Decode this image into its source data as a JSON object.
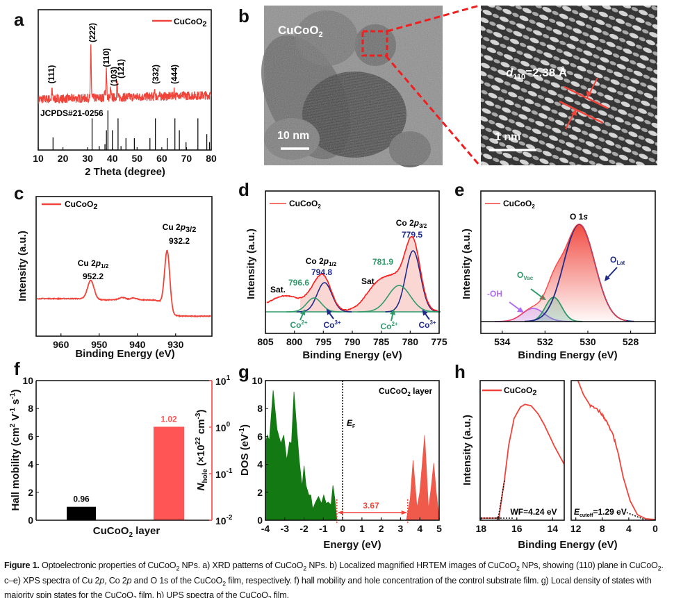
{
  "panels": {
    "a": {
      "label": "a",
      "legend": "CuCoO",
      "legend_sub": "2",
      "ref_label": "JCPDS#21-0256",
      "xlabel": "2 Theta (degree)"
    },
    "b": {
      "label": "b",
      "sample": "CuCoO",
      "sample_sub": "2",
      "scale_left": "10 nm",
      "scale_right": "1 nm",
      "d_label": "d",
      "d_sub": "110",
      "d_value": "=2.38 Å"
    },
    "c": {
      "label": "c",
      "legend": "CuCoO",
      "legend_sub": "2",
      "ylabel": "Intensity (a.u.)",
      "xlabel": "Binding Energy (eV)",
      "peak1_name": "Cu 2",
      "peak1_p": "p",
      "peak1_sub": "1/2",
      "peak1_value": "952.2",
      "peak2_name": "Cu 2",
      "peak2_p": "p",
      "peak2_sub": "3/2",
      "peak2_value": "932.2"
    },
    "d": {
      "label": "d",
      "legend": "CuCoO",
      "legend_sub": "2",
      "ylabel": "Intensity (a.u.)",
      "xlabel": "Binding Energy (eV)",
      "p12_name": "Co 2",
      "p12_p": "p",
      "p12_sub": "1/2",
      "p32_name": "Co 2",
      "p32_p": "p",
      "p32_sub": "3/2",
      "v7948": "794.8",
      "v7966": "796.6",
      "v7795": "779.5",
      "v7819": "781.9",
      "sat": "Sat.",
      "co2": "Co",
      "co2_sup": "2+",
      "co3": "Co",
      "co3_sup": "3+"
    },
    "e": {
      "label": "e",
      "legend": "CuCoO",
      "legend_sub": "2",
      "ylabel": "Intensity (a.u.)",
      "xlabel": "Binding Energy (eV)",
      "title": "O 1",
      "title_s": "s",
      "olat": "O",
      "olat_sub": "Lat",
      "ovac": "O",
      "ovac_sub": "Vac",
      "oh": "-OH"
    },
    "f": {
      "label": "f",
      "ylabel_left": "Hall mobility (cm",
      "ylabel_left_sup1": "2",
      "ylabel_left_mid": " V",
      "ylabel_left_sup2": "-1",
      "ylabel_left_end": " s",
      "ylabel_left_sup3": "-1",
      "ylabel_left_close": ")",
      "ylabel_right_n": "N",
      "ylabel_right_sub": "hole",
      "ylabel_right_mid": " (×10",
      "ylabel_right_sup": "22",
      "ylabel_right_end": " cm",
      "ylabel_right_sup2": "-3",
      "ylabel_right_close": ")",
      "xlabel": "CuCoO",
      "xlabel_sub": "2",
      "xlabel_end": " layer"
    },
    "g": {
      "label": "g",
      "legend": "CuCoO",
      "legend_sub": "2",
      "legend_end": " layer",
      "ylabel": "DOS (eV",
      "ylabel_sup": "-1",
      "ylabel_end": ")",
      "xlabel": "Energy (eV)",
      "ef": "E",
      "ef_sub": "F",
      "gap_label": "3.67"
    },
    "h": {
      "label": "h",
      "legend": "CuCoO",
      "legend_sub": "2",
      "ylabel": "Intensity (a.u.)",
      "xlabel": "Binding Energy (eV)",
      "wf": "WF=4.24 eV",
      "ecut": "E",
      "ecut_sub": "cutoff",
      "ecut_val": "=1.29 eV"
    }
  },
  "caption": {
    "figure_label": "Figure 1.",
    "t1": " Optoelectronic properties of CuCoO",
    "s1": "2",
    "t2": " NPs. a) XRD patterns of CuCoO",
    "s2": "2",
    "t3": " NPs. b) Localized magnified HRTEM images of CuCoO",
    "s3": "2",
    "t4": " NPs, showing (110) plane in CuCoO",
    "s4": "2",
    "t5": ". c–e) XPS spectra of Cu 2",
    "i1": "p",
    "t6": ", Co 2",
    "i2": "p",
    "t7": " and O 1s of the CuCoO",
    "s5": "2",
    "t8": " film, respectively. f) hall mobility and hole concentration of the control substrate film. g) Local density of states with majority spin states for the CuCoO",
    "s6": "2",
    "t9": " film. h) UPS spectra of the CuCoO",
    "s7": "2",
    "t10": " film."
  },
  "colors": {
    "red": "#f0443a",
    "bar_red": "#ff5555",
    "navy": "#1f2a8a",
    "green": "#2e9a6a",
    "purple": "#b06cf0",
    "dos_green": "#137a13",
    "dos_red": "#f05a4a",
    "pink_fill": "#f9c9c6"
  },
  "chart_data": [
    {
      "panel": "a",
      "type": "line",
      "xlabel": "2 Theta (degree)",
      "xlim": [
        10,
        80
      ],
      "xticks": [
        10,
        20,
        30,
        40,
        50,
        60,
        70,
        80
      ],
      "series": [
        {
          "name": "CuCoO2",
          "peaks": [
            {
              "x": 15.6,
              "rel": 0.18
            },
            {
              "x": 31.3,
              "rel": 1.0
            },
            {
              "x": 36.9,
              "rel": 0.12
            },
            {
              "x": 37.6,
              "rel": 0.55
            },
            {
              "x": 39.3,
              "rel": 0.15
            },
            {
              "x": 41.9,
              "rel": 0.27
            },
            {
              "x": 57.2,
              "rel": 0.12
            },
            {
              "x": 65.0,
              "rel": 0.1
            },
            {
              "x": 66.5,
              "rel": 0.08
            }
          ]
        }
      ],
      "reference": {
        "name": "JCPDS#21-0256",
        "sticks": [
          [
            16.0,
            0.32
          ],
          [
            31.8,
            0.8
          ],
          [
            34.7,
            0.1
          ],
          [
            37.0,
            0.15
          ],
          [
            37.6,
            0.5
          ],
          [
            38.2,
            1.0
          ],
          [
            40.0,
            0.5
          ],
          [
            42.3,
            0.8
          ],
          [
            43.5,
            0.1
          ],
          [
            45.5,
            0.3
          ],
          [
            48.9,
            0.3
          ],
          [
            55.2,
            0.3
          ],
          [
            57.4,
            0.8
          ],
          [
            62.2,
            0.3
          ],
          [
            65.3,
            0.8
          ],
          [
            67.1,
            0.5
          ],
          [
            69.8,
            0.2
          ],
          [
            74.6,
            0.8
          ],
          [
            78.2,
            0.4
          ],
          [
            79.3,
            0.2
          ]
        ]
      },
      "peak_labels": [
        "(111)",
        "(222)",
        "(110)",
        "(103)",
        "(121)",
        "(332)",
        "(444)"
      ]
    },
    {
      "panel": "c",
      "type": "line",
      "xlabel": "Binding Energy (eV)",
      "ylabel": "Intensity (a.u.)",
      "xlim": [
        966.5,
        920.5
      ],
      "xticks": [
        960,
        950,
        940,
        930
      ],
      "series": [
        {
          "name": "CuCoO2",
          "peaks": [
            {
              "center": 952.2,
              "height": 0.15,
              "fwhm": 2.0
            },
            {
              "center": 932.2,
              "height": 0.47,
              "fwhm": 1.6
            },
            {
              "center": 944.0,
              "height": 0.02,
              "fwhm": 2.0
            },
            {
              "center": 941.0,
              "height": 0.015,
              "fwhm": 2.0
            }
          ]
        }
      ]
    },
    {
      "panel": "d",
      "type": "line",
      "xlabel": "Binding Energy (eV)",
      "ylabel": "Intensity (a.u.)",
      "xlim": [
        805,
        775
      ],
      "xticks": [
        805,
        800,
        795,
        790,
        785,
        780,
        775
      ],
      "components": [
        {
          "name": "Co3+",
          "center": 779.5,
          "height": 0.88,
          "fwhm": 3.0,
          "color": "navy"
        },
        {
          "name": "Co2+",
          "center": 781.9,
          "height": 0.38,
          "fwhm": 4.5,
          "color": "green"
        },
        {
          "name": "Co3+",
          "center": 794.8,
          "height": 0.42,
          "fwhm": 3.0,
          "color": "navy"
        },
        {
          "name": "Co2+",
          "center": 796.6,
          "height": 0.2,
          "fwhm": 3.0,
          "color": "green"
        }
      ],
      "satellites": [
        {
          "name": "Sat.",
          "center": 785.5,
          "height": 0.38,
          "fwhm": 5.0
        },
        {
          "name": "Sat.",
          "center": 801.5,
          "height": 0.22,
          "fwhm": 7.0
        }
      ],
      "series": [
        {
          "name": "CuCoO2"
        }
      ]
    },
    {
      "panel": "e",
      "type": "line",
      "xlabel": "Binding Energy (eV)",
      "ylabel": "Intensity (a.u.)",
      "xlim": [
        535,
        526.85
      ],
      "xticks": [
        534,
        532,
        530,
        528
      ],
      "components": [
        {
          "name": "OLat",
          "center": 530.4,
          "height": 1.4,
          "fwhm": 1.7,
          "color": "navy"
        },
        {
          "name": "OVac",
          "center": 531.6,
          "height": 0.35,
          "fwhm": 0.9,
          "color": "green"
        },
        {
          "name": "-OH",
          "center": 532.55,
          "height": 0.19,
          "fwhm": 1.2,
          "color": "purple"
        }
      ],
      "series": [
        {
          "name": "CuCoO2"
        }
      ]
    },
    {
      "panel": "f",
      "type": "bar",
      "categories": [
        "CuCoO2 layer"
      ],
      "ylim_left": [
        0,
        10
      ],
      "yticks_left": [
        0,
        2,
        4,
        6,
        8,
        10
      ],
      "ylim_right": [
        0.01,
        10
      ],
      "right_scale": "log",
      "yticks_right": [
        {
          "base": "10",
          "exp": "1"
        },
        {
          "base": "10",
          "exp": "0"
        },
        {
          "base": "10",
          "exp": "-1"
        },
        {
          "base": "10",
          "exp": "-2"
        }
      ],
      "series": [
        {
          "name": "Hall mobility",
          "value": 0.96,
          "label": "0.96",
          "axis": "left",
          "color": "#000000"
        },
        {
          "name": "N_hole",
          "value": 1.02,
          "label": "1.02",
          "axis": "right",
          "color": "#ff5555"
        }
      ]
    },
    {
      "panel": "g",
      "type": "area",
      "xlabel": "Energy (eV)",
      "ylabel": "DOS (eV-1)",
      "xlim": [
        -4,
        5
      ],
      "ylim": [
        0,
        10
      ],
      "xticks": [
        -4,
        -3,
        -2,
        -1,
        0,
        1,
        2,
        3,
        4,
        5
      ],
      "yticks": [
        0,
        2,
        4,
        6,
        8,
        10
      ],
      "valence": [
        [
          -4,
          5.5
        ],
        [
          -3.9,
          6.1
        ],
        [
          -3.8,
          5.7
        ],
        [
          -3.6,
          9.3
        ],
        [
          -3.4,
          6.5
        ],
        [
          -3.2,
          5.5
        ],
        [
          -3.05,
          6.1
        ],
        [
          -2.9,
          4.3
        ],
        [
          -2.75,
          5.6
        ],
        [
          -2.65,
          5.5
        ],
        [
          -2.52,
          9.2
        ],
        [
          -2.4,
          7.0
        ],
        [
          -2.25,
          4.3
        ],
        [
          -2.1,
          2.4
        ],
        [
          -2.0,
          3.9
        ],
        [
          -1.9,
          2.5
        ],
        [
          -1.75,
          1.8
        ],
        [
          -1.65,
          1.8
        ],
        [
          -1.55,
          0.8
        ],
        [
          -1.4,
          1.3
        ],
        [
          -1.25,
          1.7
        ],
        [
          -1.1,
          1.2
        ],
        [
          -0.98,
          1.8
        ],
        [
          -0.85,
          1.2
        ],
        [
          -0.75,
          1.3
        ],
        [
          -0.6,
          1.1
        ],
        [
          -0.5,
          2.5
        ],
        [
          -0.4,
          1.5
        ],
        [
          -0.3,
          0
        ]
      ],
      "conduction": [
        [
          3.3,
          0
        ],
        [
          3.5,
          1.5
        ],
        [
          3.65,
          4.3
        ],
        [
          3.85,
          0.9
        ],
        [
          4.0,
          2.0
        ],
        [
          4.25,
          6.1
        ],
        [
          4.45,
          0.8
        ],
        [
          4.6,
          2.5
        ],
        [
          4.72,
          4.1
        ],
        [
          4.85,
          2.0
        ],
        [
          5.0,
          0.2
        ]
      ],
      "vbm": -0.3,
      "cbm": 3.37,
      "gap": 3.67,
      "fermi": 0
    },
    {
      "panel": "h",
      "type": "line",
      "xlabel": "Binding Energy (eV)",
      "ylabel": "Intensity (a.u.)",
      "left": {
        "xlim": [
          18.05,
          13.35
        ],
        "xticks": [
          18,
          16,
          14
        ],
        "points": [
          [
            18.05,
            0.015
          ],
          [
            17.0,
            0.015
          ],
          [
            16.85,
            0.15
          ],
          [
            16.7,
            0.28
          ],
          [
            16.45,
            0.54
          ],
          [
            16.15,
            0.73
          ],
          [
            15.8,
            0.81
          ],
          [
            15.55,
            0.83
          ],
          [
            15.2,
            0.82
          ],
          [
            14.8,
            0.76
          ],
          [
            14.45,
            0.68
          ],
          [
            13.9,
            0.53
          ],
          [
            13.35,
            0.4
          ]
        ]
      },
      "right": {
        "xlim": [
          12.7,
          0
        ],
        "xticks": [
          12,
          8,
          4,
          0
        ],
        "points": [
          [
            11.68,
            1.0
          ],
          [
            10.85,
            0.9
          ],
          [
            9.8,
            0.82
          ],
          [
            8.4,
            0.78
          ],
          [
            7.5,
            0.72
          ],
          [
            6.3,
            0.6
          ],
          [
            5.6,
            0.48
          ],
          [
            4.85,
            0.31
          ],
          [
            3.8,
            0.14
          ],
          [
            2.7,
            0.04
          ],
          [
            1.4,
            0.01
          ],
          [
            0,
            0.005
          ]
        ]
      },
      "work_function": 4.24,
      "cutoff": 1.29,
      "series": [
        {
          "name": "CuCoO2"
        }
      ]
    }
  ]
}
